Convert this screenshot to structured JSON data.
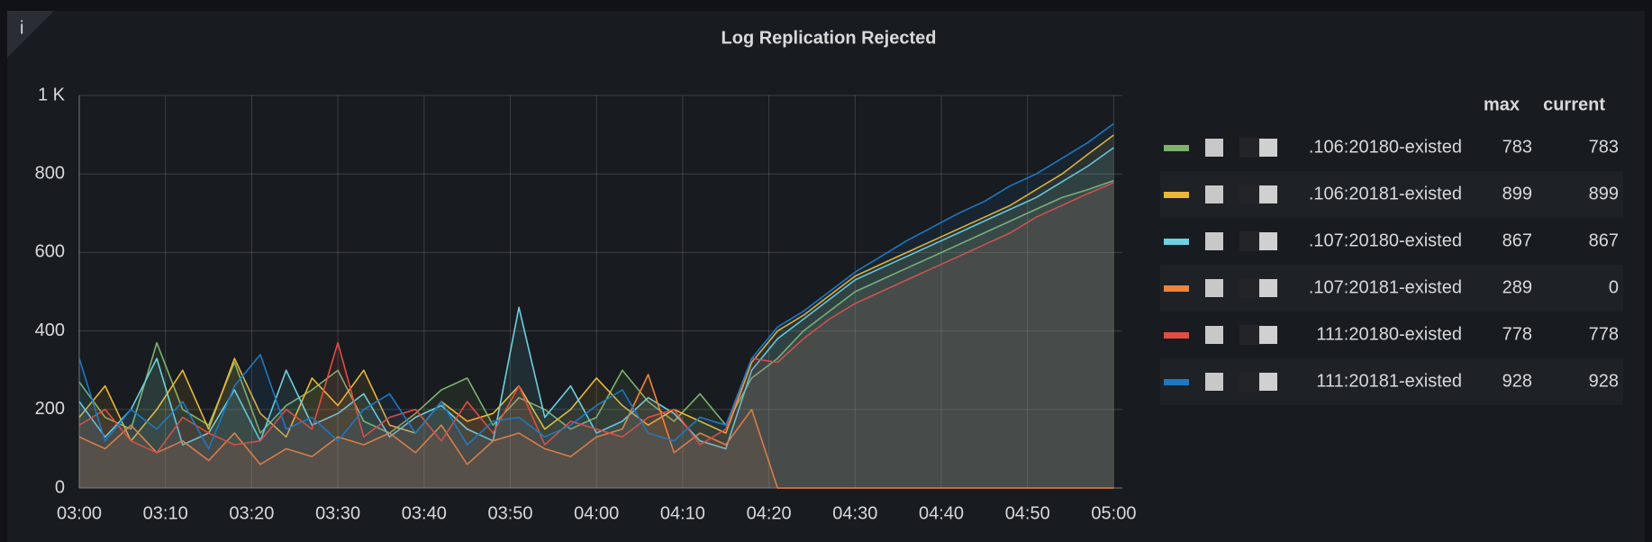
{
  "chart_data": {
    "type": "line",
    "title": "Log Replication Rejected",
    "info_icon": "i",
    "x": [
      "03:00",
      "03:03",
      "03:06",
      "03:09",
      "03:12",
      "03:15",
      "03:18",
      "03:21",
      "03:24",
      "03:27",
      "03:30",
      "03:33",
      "03:36",
      "03:39",
      "03:42",
      "03:45",
      "03:48",
      "03:51",
      "03:54",
      "03:57",
      "04:00",
      "04:03",
      "04:06",
      "04:09",
      "04:12",
      "04:15",
      "04:18",
      "04:21",
      "04:24",
      "04:27",
      "04:30",
      "04:33",
      "04:36",
      "04:39",
      "04:42",
      "04:45",
      "04:48",
      "04:51",
      "04:54",
      "04:57",
      "05:00"
    ],
    "xlim": [
      "03:00",
      "05:01"
    ],
    "xticks": [
      "03:00",
      "03:10",
      "03:20",
      "03:30",
      "03:40",
      "03:50",
      "04:00",
      "04:10",
      "04:20",
      "04:30",
      "04:40",
      "04:50",
      "05:00"
    ],
    "ylim": [
      0,
      1000
    ],
    "yticks": [
      0,
      200,
      400,
      600,
      800,
      {
        "value": 1000,
        "label": "1 K"
      }
    ],
    "grid": true,
    "fill": true,
    "legend_columns": [
      "max",
      "current"
    ],
    "series": [
      {
        "name": ".106:20180-existed",
        "color": "#7eb26d",
        "max": 783,
        "current": 783,
        "values": [
          270,
          180,
          150,
          370,
          200,
          160,
          320,
          140,
          210,
          250,
          300,
          170,
          140,
          190,
          250,
          280,
          160,
          230,
          200,
          150,
          180,
          300,
          220,
          170,
          240,
          160,
          280,
          330,
          400,
          450,
          500,
          530,
          560,
          590,
          620,
          650,
          680,
          710,
          740,
          760,
          783
        ]
      },
      {
        "name": ".106:20181-existed",
        "color": "#eab839",
        "max": 899,
        "current": 899,
        "values": [
          180,
          260,
          120,
          200,
          300,
          150,
          330,
          190,
          130,
          280,
          210,
          300,
          160,
          140,
          220,
          170,
          190,
          260,
          150,
          200,
          280,
          210,
          160,
          200,
          170,
          140,
          320,
          400,
          440,
          490,
          540,
          570,
          600,
          630,
          660,
          690,
          720,
          760,
          800,
          850,
          899
        ]
      },
      {
        "name": ".107:20180-existed",
        "color": "#6ed0e0",
        "max": 867,
        "current": 867,
        "values": [
          220,
          130,
          200,
          330,
          110,
          140,
          250,
          120,
          300,
          160,
          190,
          240,
          130,
          180,
          210,
          150,
          120,
          460,
          180,
          260,
          140,
          170,
          230,
          190,
          120,
          100,
          300,
          380,
          430,
          480,
          530,
          560,
          590,
          620,
          650,
          680,
          710,
          740,
          780,
          820,
          867
        ]
      },
      {
        "name": ".107:20181-existed",
        "color": "#ef843c",
        "max": 289,
        "current": 0,
        "values": [
          130,
          100,
          160,
          90,
          120,
          70,
          140,
          60,
          100,
          80,
          130,
          110,
          140,
          90,
          160,
          60,
          120,
          140,
          100,
          80,
          130,
          150,
          289,
          90,
          140,
          110,
          200,
          0,
          0,
          0,
          0,
          0,
          0,
          0,
          0,
          0,
          0,
          0,
          0,
          0,
          0
        ]
      },
      {
        "name": "111:20180-existed",
        "color": "#e24d42",
        "max": 778,
        "current": 778,
        "values": [
          160,
          200,
          120,
          90,
          180,
          140,
          110,
          120,
          200,
          150,
          370,
          130,
          180,
          200,
          120,
          220,
          140,
          260,
          110,
          170,
          150,
          130,
          180,
          200,
          110,
          150,
          330,
          320,
          380,
          430,
          470,
          500,
          530,
          560,
          590,
          620,
          650,
          690,
          720,
          750,
          778
        ]
      },
      {
        "name": "111:20181-existed",
        "color": "#1f78c1",
        "max": 928,
        "current": 928,
        "values": [
          330,
          120,
          200,
          150,
          220,
          100,
          260,
          340,
          150,
          180,
          120,
          200,
          240,
          140,
          220,
          110,
          170,
          180,
          130,
          160,
          210,
          250,
          140,
          120,
          180,
          160,
          330,
          410,
          450,
          500,
          550,
          590,
          630,
          665,
          700,
          730,
          770,
          800,
          840,
          880,
          928
        ]
      }
    ]
  }
}
